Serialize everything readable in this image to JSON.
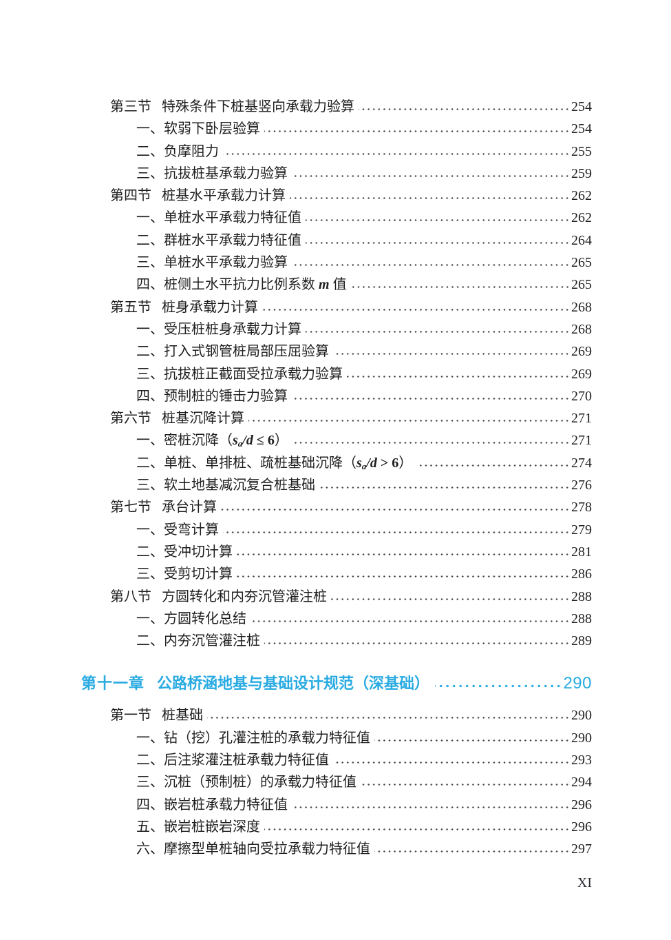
{
  "accent_color": "#29ABE2",
  "page_footer": {
    "page_number": "XI"
  },
  "toc": {
    "entries": [
      {
        "type": "section",
        "label": "第三节",
        "title": "特殊条件下桩基竖向承载力验算",
        "page": "254"
      },
      {
        "type": "sub",
        "label": "一、",
        "title": "软弱下卧层验算",
        "page": "254"
      },
      {
        "type": "sub",
        "label": "二、",
        "title": "负摩阻力",
        "page": "255"
      },
      {
        "type": "sub",
        "label": "三、",
        "title": "抗拔桩基承载力验算",
        "page": "259"
      },
      {
        "type": "section",
        "label": "第四节",
        "title": "桩基水平承载力计算",
        "page": "262"
      },
      {
        "type": "sub",
        "label": "一、",
        "title": "单桩水平承载力特征值",
        "page": "262"
      },
      {
        "type": "sub",
        "label": "二、",
        "title": "群桩水平承载力特征值",
        "page": "264"
      },
      {
        "type": "sub",
        "label": "三、",
        "title": "单桩水平承载力验算",
        "page": "265"
      },
      {
        "type": "sub",
        "label": "四、",
        "title": [
          {
            "text": "桩侧土水平抗力比例系数 "
          },
          {
            "text": "m",
            "style": "var"
          },
          {
            "text": " 值"
          }
        ],
        "page": "265"
      },
      {
        "type": "section",
        "label": "第五节",
        "title": "桩身承载力计算",
        "page": "268"
      },
      {
        "type": "sub",
        "label": "一、",
        "title": "受压桩桩身承载力计算",
        "page": "268"
      },
      {
        "type": "sub",
        "label": "二、",
        "title": "打入式钢管桩局部压屈验算",
        "page": "269"
      },
      {
        "type": "sub",
        "label": "三、",
        "title": "抗拔桩正截面受拉承载力验算",
        "page": "269"
      },
      {
        "type": "sub",
        "label": "四、",
        "title": "预制桩的锤击力验算",
        "page": "270"
      },
      {
        "type": "section",
        "label": "第六节",
        "title": "桩基沉降计算",
        "page": "271"
      },
      {
        "type": "sub",
        "label": "一、",
        "title": [
          {
            "text": "密桩沉降（"
          },
          {
            "text": "s",
            "style": "var"
          },
          {
            "text": "a",
            "style": "varsub"
          },
          {
            "text": "/d",
            "style": "var"
          },
          {
            "text": " ≤ 6",
            "style": "bold"
          },
          {
            "text": "）"
          }
        ],
        "page": "271"
      },
      {
        "type": "sub",
        "label": "二、",
        "title": [
          {
            "text": "单桩、单排桩、疏桩基础沉降（"
          },
          {
            "text": "s",
            "style": "var"
          },
          {
            "text": "a",
            "style": "varsub"
          },
          {
            "text": "/d",
            "style": "var"
          },
          {
            "text": " > 6",
            "style": "bold"
          },
          {
            "text": "）"
          }
        ],
        "page": "274"
      },
      {
        "type": "sub",
        "label": "三、",
        "title": "软土地基减沉复合桩基础",
        "page": "276"
      },
      {
        "type": "section",
        "label": "第七节",
        "title": "承台计算",
        "page": "278"
      },
      {
        "type": "sub",
        "label": "一、",
        "title": "受弯计算",
        "page": "279"
      },
      {
        "type": "sub",
        "label": "二、",
        "title": "受冲切计算",
        "page": "281"
      },
      {
        "type": "sub",
        "label": "三、",
        "title": "受剪切计算",
        "page": "286"
      },
      {
        "type": "section",
        "label": "第八节",
        "title": "方圆转化和内夯沉管灌注桩",
        "page": "288"
      },
      {
        "type": "sub",
        "label": "一、",
        "title": "方圆转化总结",
        "page": "288"
      },
      {
        "type": "sub",
        "label": "二、",
        "title": "内夯沉管灌注桩",
        "page": "289"
      },
      {
        "type": "chapter",
        "label": "第十一章",
        "title": "公路桥涵地基与基础设计规范（深基础）",
        "page": "290"
      },
      {
        "type": "section",
        "label": "第一节",
        "title": "桩基础",
        "page": "290"
      },
      {
        "type": "sub",
        "label": "一、",
        "title": "钻（挖）孔灌注桩的承载力特征值",
        "page": "290"
      },
      {
        "type": "sub",
        "label": "二、",
        "title": "后注浆灌注桩承载力特征值",
        "page": "293"
      },
      {
        "type": "sub",
        "label": "三、",
        "title": "沉桩（预制桩）的承载力特征值",
        "page": "294"
      },
      {
        "type": "sub",
        "label": "四、",
        "title": "嵌岩桩承载力特征值",
        "page": "296"
      },
      {
        "type": "sub",
        "label": "五、",
        "title": "嵌岩桩嵌岩深度",
        "page": "296"
      },
      {
        "type": "sub",
        "label": "六、",
        "title": "摩擦型单桩轴向受拉承载力特征值",
        "page": "297"
      }
    ]
  }
}
